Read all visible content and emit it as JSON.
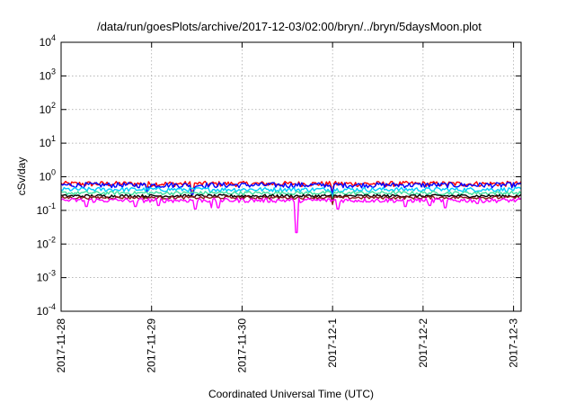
{
  "chart_data": {
    "type": "line",
    "title": "/data/run/goesPlots/archive/2017-12-03/02:00/bryn/../bryn/5daysMoon.plot",
    "xlabel": "Coordinated Universal Time (UTC)",
    "ylabel": "cSv/day",
    "yscale": "log",
    "ylim": [
      0.0001,
      10000
    ],
    "xlim": [
      "2017-11-28",
      "2017-12-03 02:00"
    ],
    "grid": true,
    "legend": "none",
    "x_ticks": [
      "2017-11-28",
      "2017-11-29",
      "2017-11-30",
      "2017-12-1",
      "2017-12-2",
      "2017-12-3"
    ],
    "y_ticks": [
      {
        "base": "10",
        "exp": "-4"
      },
      {
        "base": "10",
        "exp": "-3"
      },
      {
        "base": "10",
        "exp": "-2"
      },
      {
        "base": "10",
        "exp": "-1"
      },
      {
        "base": "10",
        "exp": "0"
      },
      {
        "base": "10",
        "exp": "1"
      },
      {
        "base": "10",
        "exp": "2"
      },
      {
        "base": "10",
        "exp": "3"
      },
      {
        "base": "10",
        "exp": "4"
      }
    ],
    "series": [
      {
        "color": "#ff0000",
        "level": 0.62,
        "noise": 0.18,
        "dips": [
          {
            "day": 0.95,
            "value": 0.4
          },
          {
            "day": 1.45,
            "value": 0.35
          },
          {
            "day": 3.0,
            "value": 0.3
          }
        ]
      },
      {
        "color": "#0000ff",
        "level": 0.57,
        "noise": 0.18,
        "dips": [
          {
            "day": 0.95,
            "value": 0.35
          },
          {
            "day": 1.45,
            "value": 0.3
          },
          {
            "day": 3.0,
            "value": 0.28
          }
        ]
      },
      {
        "color": "#00ccff",
        "level": 0.42,
        "noise": 0.15,
        "dips": [
          {
            "day": 3.0,
            "value": 0.22
          }
        ]
      },
      {
        "color": "#40e0a0",
        "level": 0.33,
        "noise": 0.12,
        "dips": [
          {
            "day": 3.0,
            "value": 0.2
          }
        ]
      },
      {
        "color": "#000000",
        "level": 0.27,
        "noise": 0.1,
        "dips": [
          {
            "day": 3.0,
            "value": 0.17
          }
        ]
      },
      {
        "color": "#8b1a1a",
        "level": 0.24,
        "noise": 0.1,
        "dips": [
          {
            "day": 3.0,
            "value": 0.15
          }
        ]
      },
      {
        "color": "#ff00ff",
        "level": 0.2,
        "noise": 0.15,
        "dips": [
          {
            "day": 0.28,
            "value": 0.13
          },
          {
            "day": 0.82,
            "value": 0.13
          },
          {
            "day": 1.08,
            "value": 0.14
          },
          {
            "day": 1.48,
            "value": 0.11
          },
          {
            "day": 1.66,
            "value": 0.12
          },
          {
            "day": 1.74,
            "value": 0.12
          },
          {
            "day": 2.6,
            "value": 0.022
          },
          {
            "day": 3.06,
            "value": 0.11
          },
          {
            "day": 3.8,
            "value": 0.13
          },
          {
            "day": 4.08,
            "value": 0.14
          },
          {
            "day": 4.24,
            "value": 0.12
          },
          {
            "day": 4.6,
            "value": 0.16
          }
        ]
      }
    ]
  }
}
